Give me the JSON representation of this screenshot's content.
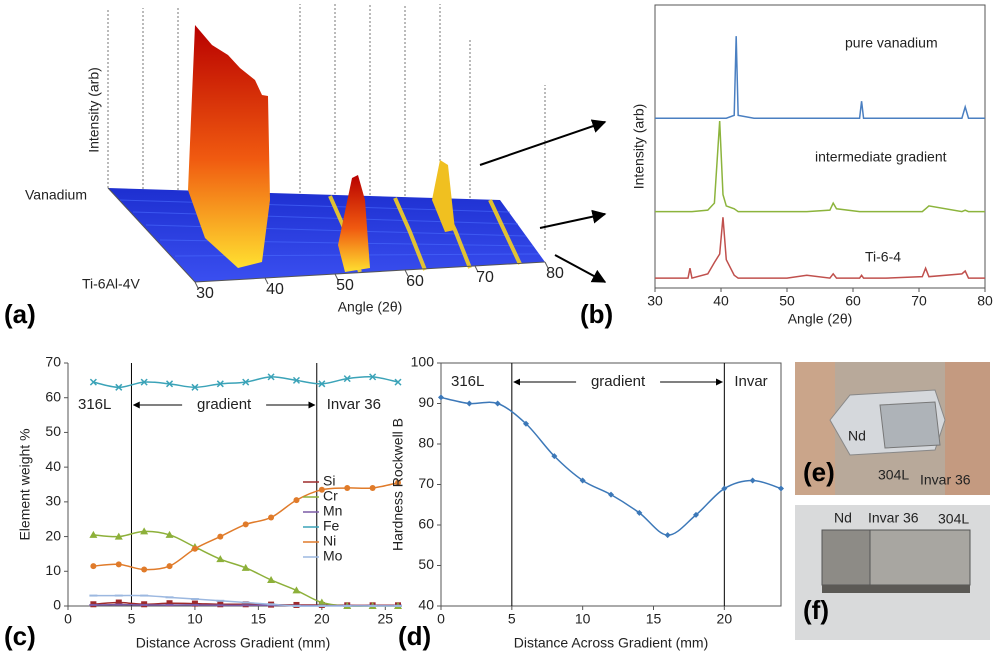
{
  "chart_data": [
    {
      "type": "waterfall",
      "panel_label": "(a)",
      "ylabel": "Intensity (arb)",
      "xlabel": "Angle (2θ)",
      "row_labels": [
        "Vanadium",
        "Ti-6Al-4V"
      ],
      "xlim": [
        30,
        80
      ],
      "xticks": [
        30,
        40,
        50,
        60,
        70,
        80
      ]
    },
    {
      "type": "line",
      "panel_label": "(b)",
      "ylabel": "Intensity (arb)",
      "xlabel": "Angle (2θ)",
      "xlim": [
        30,
        80
      ],
      "xticks": [
        30,
        40,
        50,
        60,
        70,
        80
      ],
      "ylim": [
        0,
        100
      ],
      "x": [
        30,
        35,
        35.3,
        35.6,
        38,
        39,
        39.8,
        40.3,
        40.8,
        42,
        42.3,
        42.6,
        45,
        50,
        53,
        56.5,
        57,
        57.5,
        61,
        61.3,
        61.6,
        65,
        70.5,
        71,
        71.5,
        76.5,
        77,
        77.5,
        80
      ],
      "series": [
        {
          "name": "pure vanadium",
          "color": "#4a7fc1",
          "values": [
            60,
            60,
            60,
            60,
            60,
            60,
            60,
            60,
            60,
            61,
            89,
            61,
            60,
            60,
            60,
            60,
            60,
            60,
            60,
            66,
            60,
            60,
            60,
            60,
            60,
            60,
            64,
            60,
            60
          ]
        },
        {
          "name": "intermediate gradient",
          "color": "#8cb43c",
          "values": [
            27,
            27,
            27,
            27,
            27.5,
            30,
            59,
            33,
            29,
            28,
            27.5,
            27,
            27,
            27,
            27,
            27.5,
            30,
            28,
            27,
            27,
            27,
            27,
            27,
            28,
            29,
            27,
            27.5,
            27,
            27
          ]
        },
        {
          "name": "Ti-6-4",
          "color": "#c0504d",
          "values": [
            3.5,
            3.5,
            7,
            3.5,
            5,
            9,
            12,
            25,
            10,
            4.5,
            4,
            3.5,
            3.5,
            3.5,
            4.5,
            3.5,
            5,
            3.5,
            3.5,
            4.5,
            3.5,
            3.5,
            4,
            7,
            4,
            5,
            6,
            3.5,
            3.5
          ]
        }
      ]
    },
    {
      "type": "line",
      "panel_label": "(c)",
      "ylabel": "Element weight %",
      "xlabel": "Distance Across Gradient (mm)",
      "xlim": [
        0,
        26
      ],
      "xticks": [
        0,
        5,
        10,
        15,
        20,
        25
      ],
      "ylim": [
        0,
        70
      ],
      "yticks": [
        0,
        10,
        20,
        30,
        40,
        50,
        60,
        70
      ],
      "annotations": [
        "316L",
        "gradient",
        "Invar 36"
      ],
      "vlines": [
        5,
        19.6
      ],
      "x": [
        2,
        4,
        6,
        8,
        10,
        12,
        14,
        16,
        18,
        20,
        22,
        24,
        26
      ],
      "series": [
        {
          "name": "Si",
          "color": "#9e2a2b",
          "marker": "square",
          "values": [
            0.5,
            1,
            0.5,
            0.8,
            0.7,
            0.5,
            0.5,
            0.4,
            0.3,
            0.3,
            0.2,
            0.2,
            0.2
          ]
        },
        {
          "name": "Cr",
          "color": "#8db03a",
          "marker": "triangle",
          "values": [
            20.5,
            20,
            21.5,
            20.5,
            17,
            13.5,
            11,
            7.5,
            4.5,
            1,
            0,
            0,
            0
          ]
        },
        {
          "name": "Mn",
          "color": "#7b5aa6",
          "marker": "dash",
          "values": [
            0.3,
            0.4,
            0.3,
            0.3,
            0.3,
            0.2,
            0.2,
            0.2,
            0.1,
            0.1,
            0.1,
            0.1,
            0.1
          ]
        },
        {
          "name": "Fe",
          "color": "#3ba3b8",
          "marker": "x",
          "values": [
            64.5,
            63,
            64.5,
            64,
            63,
            64,
            64.5,
            66,
            65,
            64,
            65.5,
            66,
            64.5
          ]
        },
        {
          "name": "Ni",
          "color": "#e07b2a",
          "marker": "circle",
          "values": [
            11.5,
            12,
            10.5,
            11.5,
            16.5,
            20,
            23.5,
            25.5,
            30.5,
            33.5,
            34,
            34,
            35.5
          ]
        },
        {
          "name": "Mo",
          "color": "#9cb8e0",
          "marker": "dash",
          "values": [
            3,
            3,
            3,
            2.5,
            2,
            1.5,
            1,
            0.5,
            0,
            0,
            0,
            0,
            0
          ]
        }
      ]
    },
    {
      "type": "line",
      "panel_label": "(d)",
      "ylabel": "Hardness Rockwell B",
      "xlabel": "Distance Across Gradient (mm)",
      "xlim": [
        0,
        24
      ],
      "xticks": [
        0,
        5,
        10,
        15,
        20
      ],
      "ylim": [
        40,
        100
      ],
      "yticks": [
        40,
        50,
        60,
        70,
        80,
        90,
        100
      ],
      "annotations": [
        "316L",
        "gradient",
        "Invar"
      ],
      "vlines": [
        5,
        20
      ],
      "x": [
        0,
        2,
        4,
        6,
        8,
        10,
        12,
        14,
        16,
        18,
        20,
        22,
        24
      ],
      "series": [
        {
          "name": "Hardness",
          "color": "#3c78b8",
          "marker": "diamond",
          "values": [
            91.5,
            90,
            90,
            85,
            77,
            71,
            67.5,
            63,
            57.5,
            62.5,
            69,
            71,
            69
          ]
        }
      ]
    }
  ],
  "photos": [
    {
      "panel_label": "(e)",
      "labels": [
        "Nd",
        "304L",
        "Invar 36"
      ]
    },
    {
      "panel_label": "(f)",
      "labels": [
        "Nd",
        "Invar 36",
        "304L"
      ]
    }
  ]
}
